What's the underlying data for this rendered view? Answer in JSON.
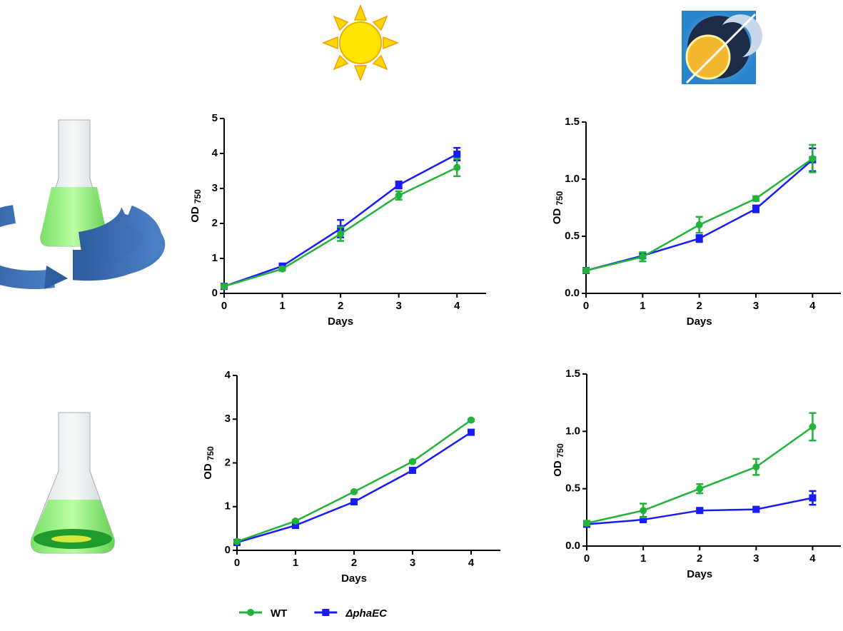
{
  "chart_data": [
    {
      "type": "line",
      "xlabel": "Days",
      "ylabel": "OD",
      "ylabel_subscript": "750",
      "xlim": [
        0,
        4.5
      ],
      "xticks": [
        0,
        1,
        2,
        3,
        4
      ],
      "ylim": [
        0,
        5
      ],
      "yticks": [
        0,
        1,
        2,
        3,
        4,
        5
      ],
      "series": [
        {
          "name": "ΔphaEC",
          "color": "#1a1aff",
          "marker": "square",
          "values": [
            0.2,
            0.78,
            1.85,
            3.1,
            3.98
          ],
          "errors": [
            0.05,
            0.05,
            0.25,
            0.1,
            0.18
          ]
        },
        {
          "name": "WT",
          "color": "#22b33a",
          "marker": "circle",
          "values": [
            0.2,
            0.7,
            1.7,
            2.8,
            3.6
          ],
          "errors": [
            0.05,
            0.05,
            0.2,
            0.12,
            0.25
          ]
        }
      ]
    },
    {
      "type": "line",
      "xlabel": "Days",
      "ylabel": "OD",
      "ylabel_subscript": "750",
      "xlim": [
        0,
        4.5
      ],
      "xticks": [
        0,
        1,
        2,
        3,
        4
      ],
      "ylim": [
        0,
        1.5
      ],
      "yticks": [
        {
          "value": 0,
          "label": "0.0"
        },
        {
          "value": 0.5,
          "label": "0.5"
        },
        {
          "value": 1,
          "label": "1.0"
        },
        {
          "value": 1.5,
          "label": "1.5"
        }
      ],
      "series": [
        {
          "color": "#1a1aff",
          "marker": "square",
          "values": [
            0.2,
            0.33,
            0.48,
            0.74,
            1.17
          ],
          "errors": [
            0.02,
            0.02,
            0.03,
            0.03,
            0.1
          ]
        },
        {
          "color": "#22b33a",
          "marker": "circle",
          "values": [
            0.2,
            0.32,
            0.6,
            0.83,
            1.18
          ],
          "errors": [
            0.02,
            0.04,
            0.07,
            0.02,
            0.12
          ]
        }
      ]
    },
    {
      "type": "line",
      "xlabel": "Days",
      "ylabel": "OD",
      "ylabel_subscript": "750",
      "xlim": [
        0,
        4.5
      ],
      "xticks": [
        0,
        1,
        2,
        3,
        4
      ],
      "ylim": [
        0,
        4
      ],
      "yticks": [
        0,
        1,
        2,
        3,
        4
      ],
      "series": [
        {
          "color": "#1a1aff",
          "marker": "square",
          "values": [
            0.18,
            0.57,
            1.11,
            1.83,
            2.7
          ],
          "errors": [
            0.02,
            0.02,
            0.02,
            0.02,
            0.03
          ]
        },
        {
          "color": "#22b33a",
          "marker": "circle",
          "values": [
            0.2,
            0.67,
            1.34,
            2.03,
            2.98
          ],
          "errors": [
            0.02,
            0.02,
            0.02,
            0.02,
            0.02
          ]
        }
      ]
    },
    {
      "type": "line",
      "xlabel": "Days",
      "ylabel": "OD",
      "ylabel_subscript": "750",
      "xlim": [
        0,
        4.5
      ],
      "xticks": [
        0,
        1,
        2,
        3,
        4
      ],
      "ylim": [
        0,
        1.5
      ],
      "yticks": [
        {
          "value": 0,
          "label": "0.0"
        },
        {
          "value": 0.5,
          "label": "0.5"
        },
        {
          "value": 1,
          "label": "1.0"
        },
        {
          "value": 1.5,
          "label": "1.5"
        }
      ],
      "series": [
        {
          "color": "#1a1aff",
          "marker": "square",
          "values": [
            0.19,
            0.23,
            0.31,
            0.32,
            0.42
          ],
          "errors": [
            0.02,
            0.02,
            0.02,
            0.02,
            0.06
          ]
        },
        {
          "color": "#22b33a",
          "marker": "circle",
          "values": [
            0.2,
            0.31,
            0.5,
            0.69,
            1.04
          ],
          "errors": [
            0.02,
            0.06,
            0.04,
            0.07,
            0.12
          ]
        }
      ]
    }
  ]
}
